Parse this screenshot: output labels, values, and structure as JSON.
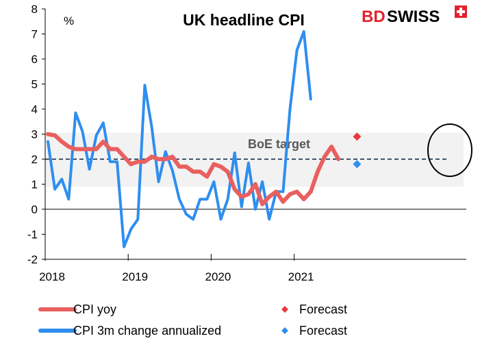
{
  "chart_data": {
    "type": "line",
    "title": "UK headline CPI",
    "unit_label": "%",
    "ylim": [
      -2,
      8
    ],
    "yticks": [
      "-2",
      "-1",
      "0",
      "1",
      "2",
      "3",
      "4",
      "5",
      "6",
      "7",
      "8"
    ],
    "xticks": [
      "2018",
      "2019",
      "2020",
      "2021"
    ],
    "x_start": "2018-01",
    "band": {
      "label": "BoE  target",
      "low": 0.9,
      "high": 3.05,
      "target": 2
    },
    "series": [
      {
        "name": "CPI yoy",
        "color": "#e8605f",
        "x": [
          "2018-01",
          "2018-02",
          "2018-03",
          "2018-04",
          "2018-05",
          "2018-06",
          "2018-07",
          "2018-08",
          "2018-09",
          "2018-10",
          "2018-11",
          "2018-12",
          "2019-01",
          "2019-02",
          "2019-03",
          "2019-04",
          "2019-05",
          "2019-06",
          "2019-07",
          "2019-08",
          "2019-09",
          "2019-10",
          "2019-11",
          "2019-12",
          "2020-01",
          "2020-02",
          "2020-03",
          "2020-04",
          "2020-05",
          "2020-06",
          "2020-07",
          "2020-08",
          "2020-09",
          "2020-10",
          "2020-11",
          "2020-12",
          "2021-01",
          "2021-02",
          "2021-03",
          "2021-04",
          "2021-05",
          "2021-06",
          "2021-07"
        ],
        "values": [
          3.0,
          2.95,
          2.7,
          2.5,
          2.4,
          2.4,
          2.4,
          2.4,
          2.7,
          2.4,
          2.4,
          2.1,
          1.8,
          1.9,
          1.9,
          2.1,
          2.0,
          2.0,
          2.1,
          1.7,
          1.7,
          1.5,
          1.5,
          1.3,
          1.8,
          1.7,
          1.5,
          0.8,
          0.5,
          0.6,
          1.0,
          0.2,
          0.5,
          0.7,
          0.3,
          0.6,
          0.7,
          0.4,
          0.7,
          1.5,
          2.1,
          2.5,
          2.0
        ]
      },
      {
        "name": "CPI 3m change annualized",
        "color": "#2e8ef0",
        "x": [
          "2018-01",
          "2018-02",
          "2018-03",
          "2018-04",
          "2018-05",
          "2018-06",
          "2018-07",
          "2018-08",
          "2018-09",
          "2018-10",
          "2018-11",
          "2018-12",
          "2019-01",
          "2019-02",
          "2019-03",
          "2019-04",
          "2019-05",
          "2019-06",
          "2019-07",
          "2019-08",
          "2019-09",
          "2019-10",
          "2019-11",
          "2019-12",
          "2020-01",
          "2020-02",
          "2020-03",
          "2020-04",
          "2020-05",
          "2020-06",
          "2020-07",
          "2020-08",
          "2020-09",
          "2020-10",
          "2020-11",
          "2020-12",
          "2021-01",
          "2021-02",
          "2021-03",
          "2021-04",
          "2021-05",
          "2021-06",
          "2021-07"
        ],
        "values": [
          2.7,
          0.8,
          1.2,
          0.4,
          3.85,
          3.1,
          1.6,
          2.95,
          3.45,
          1.9,
          1.9,
          -1.5,
          -0.8,
          -0.4,
          4.95,
          3.3,
          1.1,
          2.3,
          1.55,
          0.4,
          -0.2,
          -0.4,
          0.4,
          0.4,
          1.1,
          -0.4,
          0.4,
          2.25,
          0.1,
          1.85,
          0.0,
          1.1,
          -0.4,
          0.7,
          0.7,
          4.0,
          6.35,
          7.1,
          4.4,
          null,
          null,
          null,
          null
        ],
        "values_note": ""
      }
    ],
    "forecasts": [
      {
        "label": "Forecast",
        "color": "#e8383f",
        "x": "2021-09",
        "value": 2.9
      },
      {
        "label": "Forecast",
        "color": "#2e8ef0",
        "x": "2021-09",
        "value": 1.8
      }
    ],
    "legend": {
      "items": [
        {
          "label": "CPI yoy",
          "kind": "line",
          "color": "#e8605f"
        },
        {
          "label": "Forecast",
          "kind": "diamond",
          "color": "#e8383f"
        },
        {
          "label": "CPI 3m change annualized",
          "kind": "line",
          "color": "#2e8ef0"
        },
        {
          "label": "Forecast",
          "kind": "diamond",
          "color": "#2e8ef0"
        }
      ]
    }
  },
  "logo": {
    "part1": "BD",
    "part2": "SWISS"
  }
}
